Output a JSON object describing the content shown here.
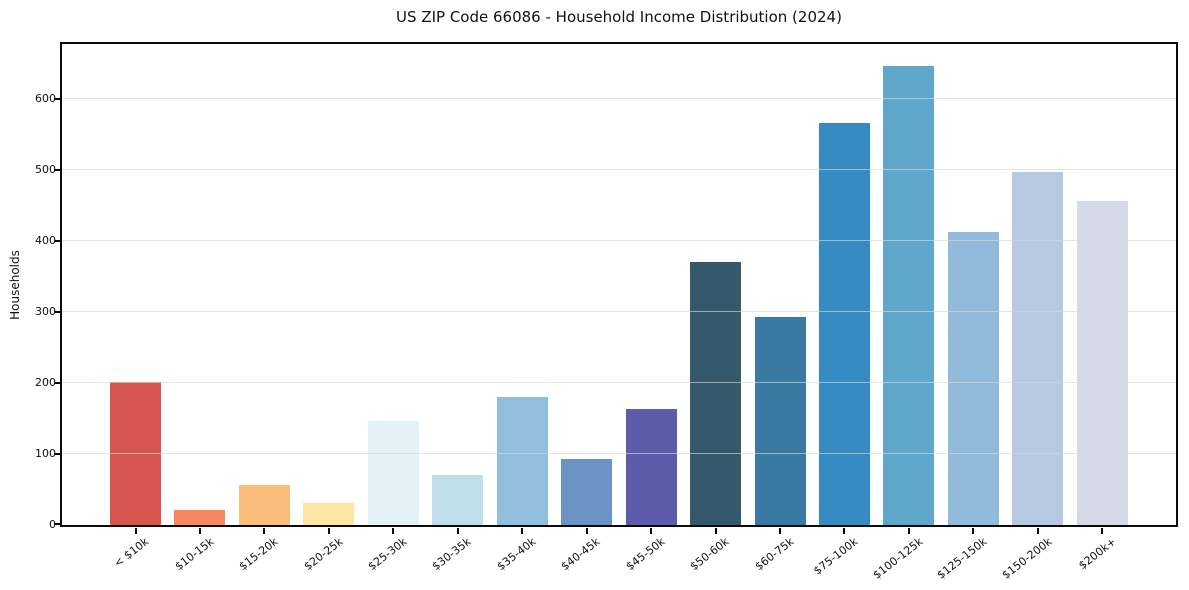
{
  "figure": {
    "background": "#ffffff",
    "text_color": "#111111",
    "spine_color": "#0a0a0a",
    "grid_color": "#e7e7e7"
  },
  "chart_data": {
    "type": "bar",
    "title": "US ZIP Code 66086 - Household Income Distribution (2024)",
    "xlabel": "",
    "ylabel": "Households",
    "categories": [
      "< $10k",
      "$10-15k",
      "$15-20k",
      "$20-25k",
      "$25-30k",
      "$30-35k",
      "$35-40k",
      "$40-45k",
      "$45-50k",
      "$50-60k",
      "$60-75k",
      "$75-100k",
      "$100-125k",
      "$125-150k",
      "$150-200k",
      "$200k+"
    ],
    "values": [
      201,
      21,
      57,
      31,
      146,
      70,
      180,
      93,
      164,
      371,
      293,
      566,
      646,
      412,
      497,
      456
    ],
    "bar_colors": [
      "#d6564f",
      "#f58860",
      "#fabd7c",
      "#fde5a4",
      "#e4f1f7",
      "#bfdfeb",
      "#92bedd",
      "#6b93c4",
      "#5c5cab",
      "#35596c",
      "#3a79a1",
      "#368cc2",
      "#5fa7ca",
      "#92badb",
      "#b7c8e1",
      "#d6d9e7"
    ],
    "y_ticks": [
      0,
      100,
      200,
      300,
      400,
      500,
      600
    ],
    "ylim": [
      0,
      683
    ],
    "grid": "horizontal",
    "legend": "none",
    "x_label_rotation_deg": 38
  }
}
